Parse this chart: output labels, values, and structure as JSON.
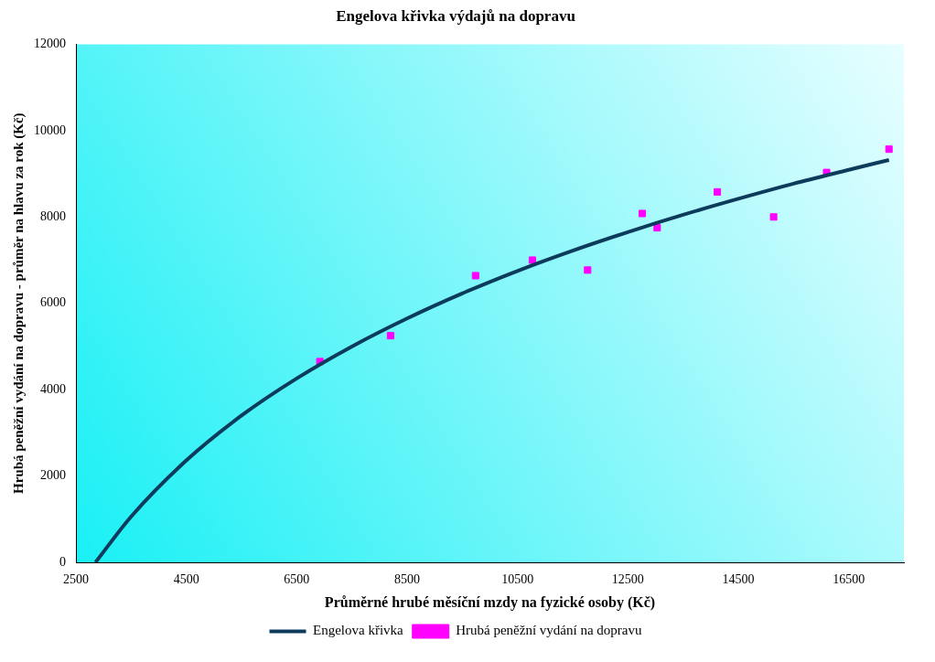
{
  "chart_data": {
    "type": "scatter",
    "title": "Engelova křivka výdajů na dopravu",
    "xlabel": "Průměrné hrubé měsíční mzdy na fyzické osoby (Kč)",
    "ylabel": "Hrubá peněžní vydání na dopravu - průměr na hlavu za rok (Kč)",
    "xlim": [
      2500,
      17500
    ],
    "xticks": [
      2500,
      4500,
      6500,
      8500,
      10500,
      12500,
      14500,
      16500
    ],
    "ylim": [
      0,
      12000
    ],
    "yticks": [
      0,
      2000,
      4000,
      6000,
      8000,
      10000,
      12000
    ],
    "grid": false,
    "legend": "bottom",
    "series": [
      {
        "name": "Engelova křivka",
        "type": "line",
        "color": "#0d3b5c",
        "marker": "none",
        "line_style": "solid",
        "x": [
          2855,
          3500,
          4500,
          5500,
          6500,
          7500,
          8500,
          9500,
          10500,
          11500,
          12500,
          13500,
          14500,
          15500,
          16500,
          17230
        ],
        "values": [
          0,
          1060,
          2360,
          3400,
          4260,
          5000,
          5650,
          6230,
          6750,
          7220,
          7650,
          8050,
          8420,
          8770,
          9090,
          9320
        ]
      },
      {
        "name": "Hrubá peněžní vydání na dopravu",
        "color": "#ff00ff",
        "marker": "square",
        "x": [
          6920,
          8200,
          9740,
          10770,
          11770,
          12760,
          13030,
          14120,
          15140,
          16100,
          17230
        ],
        "values": [
          4650,
          5250,
          6640,
          7000,
          6770,
          8080,
          7750,
          8580,
          8000,
          9030,
          9570
        ]
      }
    ]
  }
}
